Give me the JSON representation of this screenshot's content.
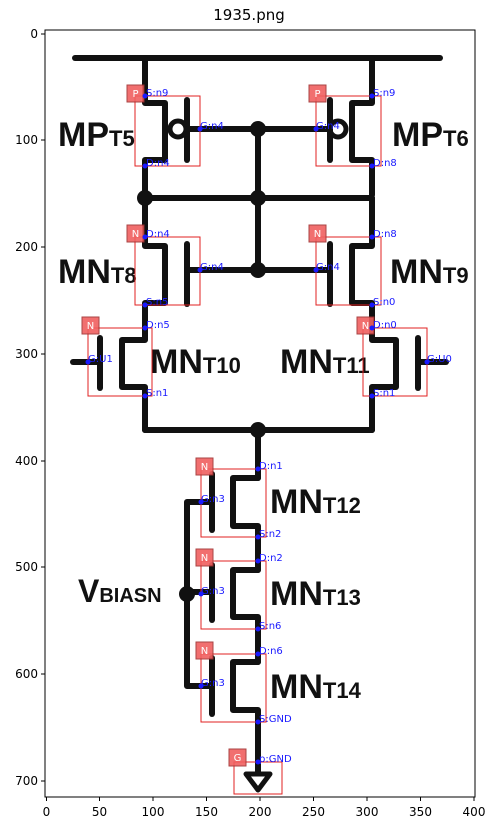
{
  "title": "1935.png",
  "axes": {
    "x_ticks": [
      "0",
      "50",
      "100",
      "150",
      "200",
      "250",
      "300",
      "350",
      "400"
    ],
    "y_ticks": [
      "0",
      "100",
      "200",
      "300",
      "400",
      "500",
      "600",
      "700"
    ]
  },
  "labels": {
    "mpt5": {
      "main": "MP",
      "sub": "T5"
    },
    "mpt6": {
      "main": "MP",
      "sub": "T6"
    },
    "mnt8": {
      "main": "MN",
      "sub": "T8"
    },
    "mnt9": {
      "main": "MN",
      "sub": "T9"
    },
    "mnt10": {
      "main": "MN",
      "sub": "T10"
    },
    "mnt11": {
      "main": "MN",
      "sub": "T11"
    },
    "mnt12": {
      "main": "MN",
      "sub": "T12"
    },
    "mnt13": {
      "main": "MN",
      "sub": "T13"
    },
    "mnt14": {
      "main": "MN",
      "sub": "T14"
    },
    "vbiasn": {
      "main": "V",
      "sub": "BIASN"
    }
  },
  "tags": {
    "t5": "P",
    "t6": "P",
    "t8": "N",
    "t9": "N",
    "t10": "N",
    "t11": "N",
    "t12": "N",
    "t13": "N",
    "t14": "N",
    "gnd": "G"
  },
  "annotations": {
    "t5_s": "S:n9",
    "t5_g": "G:n4",
    "t5_d": "D:n4",
    "t6_s": "S:n9",
    "t6_g": "G:n4",
    "t6_d": "D:n8",
    "t8_d": "D:n4",
    "t8_g": "G:n4",
    "t8_s": "S:n5",
    "t9_d": "D:n8",
    "t9_g": "G:n4",
    "t9_s": "S:n0",
    "t10_d": "D:n5",
    "t10_g": "G:U1",
    "t10_s": "S:n1",
    "t11_d": "D:n0",
    "t11_g": "G:U0",
    "t11_s": "S:n1",
    "t12_d": "D:n1",
    "t12_g": "G:n3",
    "t12_s": "S:n2",
    "t13_d": "D:n2",
    "t13_g": "G:n3",
    "t13_s": "S:n6",
    "t14_d": "D:n6",
    "t14_g": "G:n3",
    "t14_s": "S:GND",
    "gnd": "p:GND"
  },
  "colors": {
    "wire": "#111111",
    "box": "#e02020",
    "tag": "#f06060",
    "annotation": "#1a1aff"
  }
}
